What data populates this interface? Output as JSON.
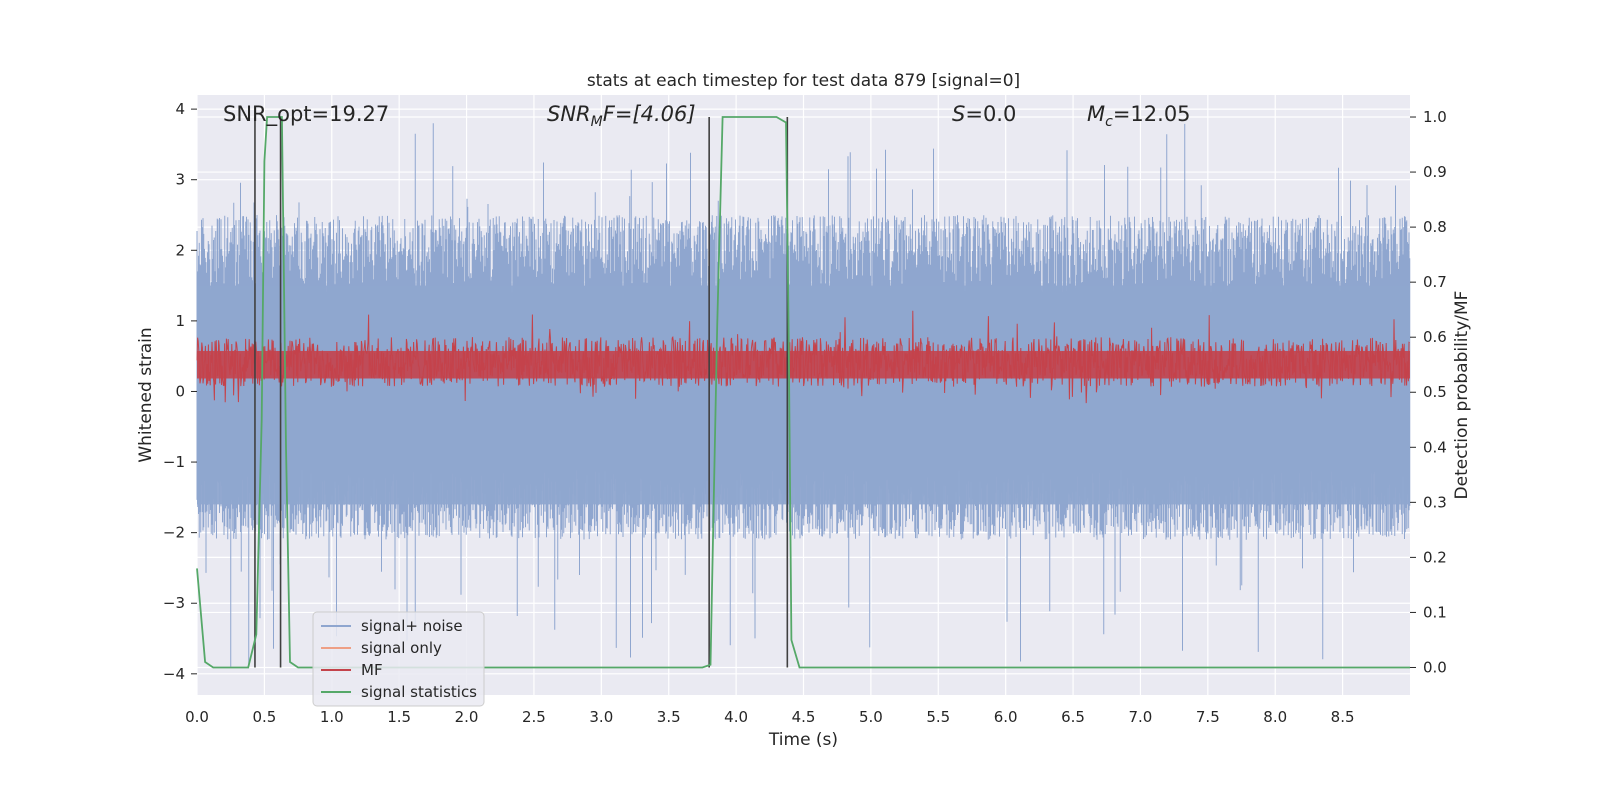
{
  "chart_data": {
    "type": "line",
    "title": "stats at each timestep for test data 879 [signal=0]",
    "xlabel": "Time (s)",
    "ylabel": "Whitened strain",
    "ylabel_right": "Detection probability/MF",
    "xlim": [
      0.0,
      9.0
    ],
    "ylim": [
      -4.3,
      4.2
    ],
    "ylim_right": [
      -0.05,
      1.04
    ],
    "xticks": [
      "0.0",
      "0.5",
      "1.0",
      "1.5",
      "2.0",
      "2.5",
      "3.0",
      "3.5",
      "4.0",
      "4.5",
      "5.0",
      "5.5",
      "6.0",
      "6.5",
      "7.0",
      "7.5",
      "8.0",
      "8.5"
    ],
    "yticks": [
      "4",
      "3",
      "2",
      "1",
      "0",
      "−1",
      "−2",
      "−3",
      "−4"
    ],
    "yticks_right": [
      "1.0",
      "0.9",
      "0.8",
      "0.7",
      "0.6",
      "0.5",
      "0.4",
      "0.3",
      "0.2",
      "0.1",
      "0.0"
    ],
    "annotations": {
      "snr_opt": "SNR_opt=19.27",
      "snr_mf_label": "SNR",
      "snr_mf_sub": "M",
      "snr_mf_value": "F=[4.06]",
      "s_label": "S",
      "s_value": "=0.0",
      "mc_label": "M",
      "mc_sub": "c",
      "mc_value": "=12.05"
    },
    "series": [
      {
        "name": "signal+ noise",
        "color": "#8fa6cf",
        "axis": "left",
        "description_envelope": {
          "typical_range": [
            -2.0,
            2.5
          ],
          "max_peak": 3.85,
          "min_trough": -3.9
        },
        "render": "noise"
      },
      {
        "name": "signal only",
        "color": "#ee9f85",
        "axis": "left",
        "render": "none"
      },
      {
        "name": "MF",
        "color": "#c4434b",
        "axis": "right",
        "mean": 0.55,
        "band": [
          0.51,
          0.6
        ],
        "render": "band"
      },
      {
        "name": "signal statistics",
        "color": "#55a868",
        "axis": "right",
        "render": "line",
        "x": [
          0.0,
          0.06,
          0.12,
          0.38,
          0.44,
          0.48,
          0.5,
          0.52,
          0.63,
          0.66,
          0.69,
          0.75,
          3.75,
          3.81,
          3.86,
          3.9,
          4.3,
          4.37,
          4.39,
          4.41,
          4.47,
          9.0
        ],
        "y": [
          0.18,
          0.01,
          0.0,
          0.0,
          0.06,
          0.45,
          0.92,
          1.0,
          1.0,
          0.4,
          0.01,
          0.0,
          0.0,
          0.005,
          0.62,
          1.0,
          1.0,
          0.99,
          0.6,
          0.05,
          0.0,
          0.0
        ]
      }
    ],
    "vertical_markers_x": [
      0.43,
      0.62,
      3.8,
      4.38
    ],
    "marker_color": "#404040",
    "legend": {
      "placement": "lower-left",
      "entries": [
        "signal+ noise",
        "signal only",
        "MF",
        "signal statistics"
      ]
    },
    "grid": true,
    "background_color": "#eaeaf2",
    "grid_color": "#ffffff"
  }
}
